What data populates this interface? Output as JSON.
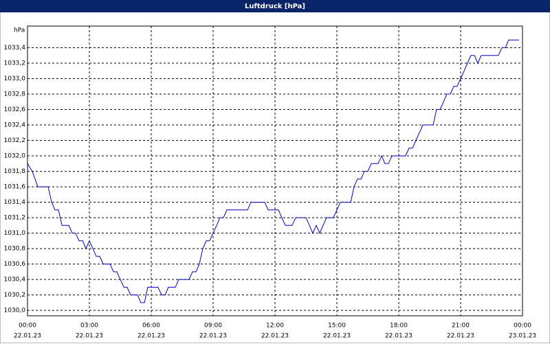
{
  "chart_data": {
    "type": "line",
    "title": "Luftdruck [hPa]",
    "y_label": "hPa",
    "grid": true,
    "xlim": [
      0,
      24
    ],
    "ylim": [
      1029.93,
      1033.68
    ],
    "xticks": [
      {
        "value": 0,
        "label": "00:00",
        "date": "22.01.23"
      },
      {
        "value": 3,
        "label": "03:00",
        "date": "22.01.23"
      },
      {
        "value": 6,
        "label": "06:00",
        "date": "22.01.23"
      },
      {
        "value": 9,
        "label": "09:00",
        "date": "22.01.23"
      },
      {
        "value": 12,
        "label": "12:00",
        "date": "22.01.23"
      },
      {
        "value": 15,
        "label": "15:00",
        "date": "22.01.23"
      },
      {
        "value": 18,
        "label": "18:00",
        "date": "22.01.23"
      },
      {
        "value": 21,
        "label": "21:00",
        "date": "22.01.23"
      },
      {
        "value": 24,
        "label": "00:00",
        "date": "23.01.23"
      }
    ],
    "yticks": [
      {
        "value": 1030.0,
        "label": "1030,0"
      },
      {
        "value": 1030.2,
        "label": "1030,2"
      },
      {
        "value": 1030.4,
        "label": "1030,4"
      },
      {
        "value": 1030.6,
        "label": "1030,6"
      },
      {
        "value": 1030.8,
        "label": "1030,8"
      },
      {
        "value": 1031.0,
        "label": "1031,0"
      },
      {
        "value": 1031.2,
        "label": "1031,2"
      },
      {
        "value": 1031.4,
        "label": "1031,4"
      },
      {
        "value": 1031.6,
        "label": "1031,6"
      },
      {
        "value": 1031.8,
        "label": "1031,8"
      },
      {
        "value": 1032.0,
        "label": "1032,0"
      },
      {
        "value": 1032.2,
        "label": "1032,2"
      },
      {
        "value": 1032.4,
        "label": "1032,4"
      },
      {
        "value": 1032.6,
        "label": "1032,6"
      },
      {
        "value": 1032.8,
        "label": "1032,8"
      },
      {
        "value": 1033.0,
        "label": "1033,0"
      },
      {
        "value": 1033.2,
        "label": "1033,2"
      },
      {
        "value": 1033.4,
        "label": "1033,4"
      }
    ],
    "x": [
      0,
      0.23,
      0.5,
      1,
      1.17,
      1.33,
      1.5,
      1.67,
      2,
      2.17,
      2.33,
      2.5,
      2.67,
      2.83,
      3,
      3.17,
      3.33,
      3.5,
      3.67,
      4,
      4.17,
      4.33,
      4.5,
      4.67,
      4.83,
      5,
      5.33,
      5.5,
      5.67,
      5.83,
      6.33,
      6.5,
      6.67,
      6.83,
      7.17,
      7.33,
      7.83,
      8,
      8.17,
      8.33,
      8.5,
      8.67,
      8.83,
      9,
      9.17,
      9.33,
      9.5,
      9.67,
      10.67,
      10.83,
      11.5,
      11.67,
      12.17,
      12.33,
      12.5,
      12.83,
      13,
      13.5,
      13.67,
      13.83,
      14,
      14.17,
      14.33,
      14.5,
      14.83,
      15,
      15.17,
      15.67,
      15.83,
      16,
      16.17,
      16.33,
      16.5,
      16.67,
      17,
      17.17,
      17.33,
      17.5,
      17.67,
      18.33,
      18.5,
      18.67,
      18.83,
      19,
      19.17,
      19.67,
      19.83,
      20,
      20.17,
      20.33,
      20.5,
      20.67,
      20.83,
      21,
      21.17,
      21.33,
      21.5,
      21.67,
      21.83,
      22,
      22.83,
      23,
      23.17,
      23.33,
      23.83
    ],
    "series": [
      {
        "color": "#0000c0",
        "values": [
          1031.9,
          1031.8,
          1031.6,
          1031.6,
          1031.4,
          1031.3,
          1031.3,
          1031.1,
          1031.1,
          1031.0,
          1031.0,
          1030.9,
          1030.9,
          1030.8,
          1030.9,
          1030.8,
          1030.7,
          1030.7,
          1030.6,
          1030.6,
          1030.5,
          1030.5,
          1030.4,
          1030.3,
          1030.3,
          1030.2,
          1030.2,
          1030.1,
          1030.1,
          1030.3,
          1030.3,
          1030.2,
          1030.2,
          1030.3,
          1030.3,
          1030.4,
          1030.4,
          1030.5,
          1030.5,
          1030.6,
          1030.8,
          1030.9,
          1030.9,
          1031.0,
          1031.1,
          1031.2,
          1031.2,
          1031.3,
          1031.3,
          1031.4,
          1031.4,
          1031.3,
          1031.3,
          1031.2,
          1031.1,
          1031.1,
          1031.2,
          1031.2,
          1031.1,
          1031.0,
          1031.1,
          1031.0,
          1031.1,
          1031.2,
          1031.2,
          1031.3,
          1031.4,
          1031.4,
          1031.6,
          1031.7,
          1031.7,
          1031.8,
          1031.8,
          1031.9,
          1031.9,
          1032.0,
          1031.9,
          1031.9,
          1032.0,
          1032.0,
          1032.1,
          1032.1,
          1032.2,
          1032.3,
          1032.4,
          1032.4,
          1032.6,
          1032.6,
          1032.7,
          1032.8,
          1032.8,
          1032.9,
          1032.9,
          1033.0,
          1033.1,
          1033.2,
          1033.3,
          1033.3,
          1033.2,
          1033.3,
          1033.3,
          1033.4,
          1033.4,
          1033.5,
          1033.5
        ]
      }
    ]
  }
}
